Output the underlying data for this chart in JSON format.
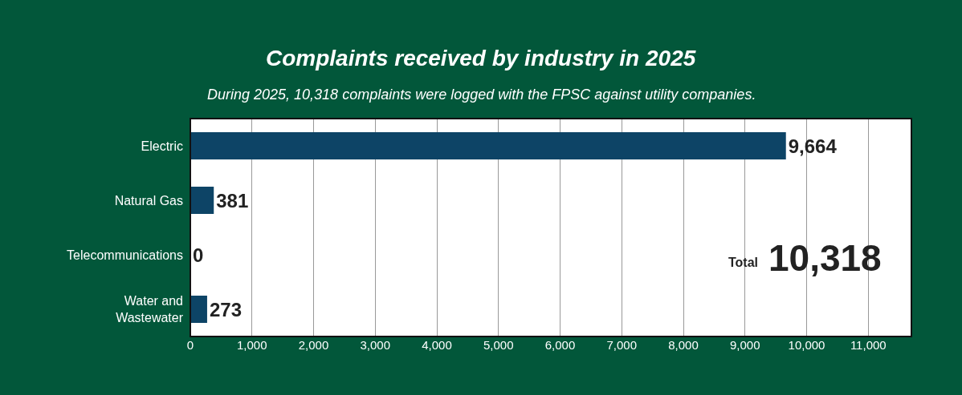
{
  "chart_data": {
    "type": "bar",
    "orientation": "horizontal",
    "title": "Complaints received by industry in 2025",
    "subtitle": "During 2025, 10,318 complaints were logged with the FPSC against utility companies.",
    "categories": [
      "Electric",
      "Natural Gas",
      "Telecommunications",
      "Water and Wastewater"
    ],
    "values": [
      9664,
      381,
      0,
      273
    ],
    "value_labels": [
      "9,664",
      "381",
      "0",
      "273"
    ],
    "color": "#0d4466",
    "xlim": [
      0,
      11700
    ],
    "xticks": [
      {
        "value": 0,
        "label": "0"
      },
      {
        "value": 1000,
        "label": "1,000"
      },
      {
        "value": 2000,
        "label": "2,000"
      },
      {
        "value": 3000,
        "label": "3,000"
      },
      {
        "value": 4000,
        "label": "4,000"
      },
      {
        "value": 5000,
        "label": "5,000"
      },
      {
        "value": 6000,
        "label": "6,000"
      },
      {
        "value": 7000,
        "label": "7,000"
      },
      {
        "value": 8000,
        "label": "8,000"
      },
      {
        "value": 9000,
        "label": "9,000"
      },
      {
        "value": 10000,
        "label": "10,000"
      },
      {
        "value": 11000,
        "label": "11,000"
      }
    ],
    "grid": "x",
    "legend": false,
    "annotations": [
      "Total",
      "10,318"
    ]
  }
}
